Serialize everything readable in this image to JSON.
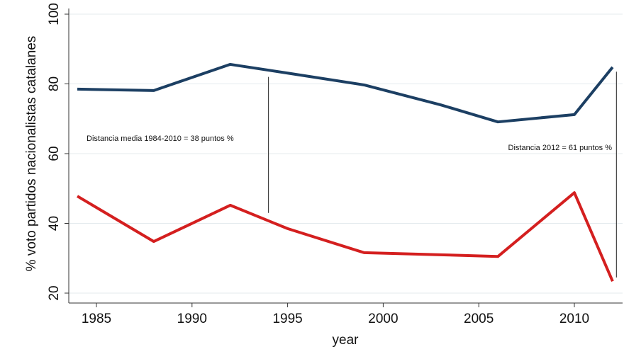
{
  "chart_data": {
    "type": "line",
    "title": "",
    "xlabel": "year",
    "ylabel": "% voto partidos nacionalistas catalanes",
    "xlim": [
      1983.3,
      2012.8
    ],
    "ylim": [
      18,
      100
    ],
    "xticks": [
      1985,
      1990,
      1995,
      2000,
      2005,
      2010
    ],
    "yticks": [
      20,
      40,
      60,
      80,
      100
    ],
    "grid": "horizontal",
    "series": [
      {
        "color": "#1c3f63",
        "x": [
          1984,
          1988,
          1992,
          1995,
          1999,
          2003,
          2006,
          2010,
          2012
        ],
        "y": [
          78.5,
          78.1,
          85.6,
          83.1,
          79.7,
          74.0,
          69.1,
          71.2,
          84.8
        ]
      },
      {
        "color": "#d41f1f",
        "x": [
          1984,
          1988,
          1992,
          1995,
          1999,
          2003,
          2006,
          2010,
          2012
        ],
        "y": [
          47.8,
          34.8,
          45.2,
          38.5,
          31.6,
          31.0,
          30.5,
          48.8,
          23.4
        ]
      }
    ],
    "annotations": [
      {
        "text": "Distancia media 1984-2010 = 38 puntos %",
        "x": 1994,
        "y_from": 43,
        "y_to": 82
      },
      {
        "text": "Distancia 2012 = 61 puntos %",
        "x": 2012.2,
        "y_from": 24.5,
        "y_to": 83.5
      }
    ]
  }
}
